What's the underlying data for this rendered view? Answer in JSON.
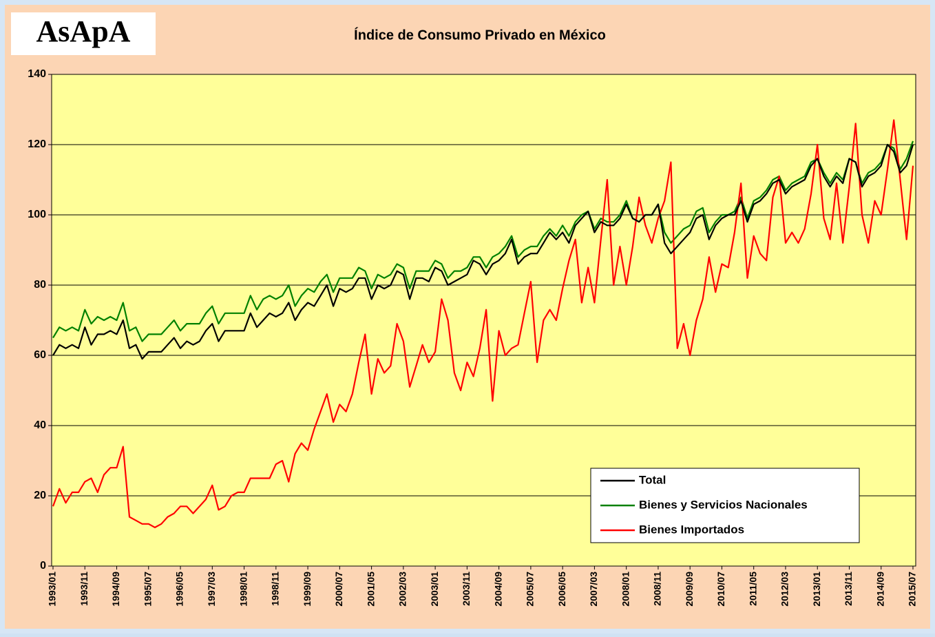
{
  "logo": "AsApA",
  "chart_data": {
    "type": "line",
    "title": "Índice de Consumo Privado en México",
    "categories": [
      "1993/01",
      null,
      null,
      null,
      null,
      "1993/11",
      null,
      null,
      null,
      null,
      "1994/09",
      null,
      null,
      null,
      null,
      "1995/07",
      null,
      null,
      null,
      null,
      "1996/05",
      null,
      null,
      null,
      null,
      "1997/03",
      null,
      null,
      null,
      null,
      "1998/01",
      null,
      null,
      null,
      null,
      "1998/11",
      null,
      null,
      null,
      null,
      "1999/09",
      null,
      null,
      null,
      null,
      "2000/07",
      null,
      null,
      null,
      null,
      "2001/05",
      null,
      null,
      null,
      null,
      "2002/03",
      null,
      null,
      null,
      null,
      "2003/01",
      null,
      null,
      null,
      null,
      "2003/11",
      null,
      null,
      null,
      null,
      "2004/09",
      null,
      null,
      null,
      null,
      "2005/07",
      null,
      null,
      null,
      null,
      "2006/05",
      null,
      null,
      null,
      null,
      "2007/03",
      null,
      null,
      null,
      null,
      "2008/01",
      null,
      null,
      null,
      null,
      "2008/11",
      null,
      null,
      null,
      null,
      "2009/09",
      null,
      null,
      null,
      null,
      "2010/07",
      null,
      null,
      null,
      null,
      "2011/05",
      null,
      null,
      null,
      null,
      "2012/03",
      null,
      null,
      null,
      null,
      "2013/01",
      null,
      null,
      null,
      null,
      "2013/11",
      null,
      null,
      null,
      null,
      "2014/09",
      null,
      null,
      null,
      null,
      "2015/07"
    ],
    "series": [
      {
        "name": "Total",
        "color": "#000000",
        "values": [
          60,
          63,
          62,
          63,
          62,
          68,
          63,
          66,
          66,
          67,
          66,
          70,
          62,
          63,
          59,
          61,
          61,
          61,
          63,
          65,
          62,
          64,
          63,
          64,
          67,
          69,
          64,
          67,
          67,
          67,
          67,
          72,
          68,
          70,
          72,
          71,
          72,
          75,
          70,
          73,
          75,
          74,
          77,
          80,
          74,
          79,
          78,
          79,
          82,
          82,
          76,
          80,
          79,
          80,
          84,
          83,
          76,
          82,
          82,
          81,
          85,
          84,
          80,
          81,
          82,
          83,
          87,
          86,
          83,
          86,
          87,
          89,
          93,
          86,
          88,
          89,
          89,
          92,
          95,
          93,
          95,
          92,
          97,
          99,
          101,
          95,
          98,
          97,
          97,
          99,
          103,
          99,
          98,
          100,
          100,
          103,
          92,
          89,
          91,
          93,
          95,
          99,
          100,
          93,
          97,
          99,
          100,
          100,
          104,
          98,
          103,
          104,
          106,
          109,
          110,
          106,
          108,
          109,
          110,
          114,
          116,
          111,
          108,
          111,
          109,
          116,
          115,
          108,
          111,
          112,
          114,
          120,
          118,
          112,
          114,
          120
        ]
      },
      {
        "name": "Bienes y Servicios Nacionales",
        "color": "#008000",
        "values": [
          65,
          68,
          67,
          68,
          67,
          73,
          69,
          71,
          70,
          71,
          70,
          75,
          67,
          68,
          64,
          66,
          66,
          66,
          68,
          70,
          67,
          69,
          69,
          69,
          72,
          74,
          69,
          72,
          72,
          72,
          72,
          77,
          73,
          76,
          77,
          76,
          77,
          80,
          74,
          77,
          79,
          78,
          81,
          83,
          78,
          82,
          82,
          82,
          85,
          84,
          79,
          83,
          82,
          83,
          86,
          85,
          79,
          84,
          84,
          84,
          87,
          86,
          82,
          84,
          84,
          85,
          88,
          88,
          85,
          88,
          89,
          91,
          94,
          88,
          90,
          91,
          91,
          94,
          96,
          94,
          97,
          94,
          98,
          100,
          101,
          96,
          99,
          98,
          98,
          100,
          104,
          99,
          98,
          100,
          100,
          103,
          95,
          92,
          94,
          96,
          97,
          101,
          102,
          95,
          98,
          100,
          100,
          101,
          105,
          99,
          104,
          105,
          107,
          110,
          111,
          107,
          109,
          110,
          111,
          115,
          116,
          112,
          109,
          112,
          110,
          116,
          115,
          109,
          112,
          113,
          115,
          120,
          119,
          113,
          116,
          121
        ]
      },
      {
        "name": "Bienes Importados",
        "color": "#ff0000",
        "values": [
          17,
          22,
          18,
          21,
          21,
          24,
          25,
          21,
          26,
          28,
          28,
          34,
          14,
          13,
          12,
          12,
          11,
          12,
          14,
          15,
          17,
          17,
          15,
          17,
          19,
          23,
          16,
          17,
          20,
          21,
          21,
          25,
          25,
          25,
          25,
          29,
          30,
          24,
          32,
          35,
          33,
          39,
          44,
          49,
          41,
          46,
          44,
          49,
          58,
          66,
          49,
          59,
          55,
          57,
          69,
          64,
          51,
          57,
          63,
          58,
          61,
          76,
          70,
          55,
          50,
          58,
          54,
          62,
          73,
          47,
          67,
          60,
          62,
          63,
          72,
          81,
          58,
          70,
          73,
          70,
          79,
          87,
          93,
          75,
          85,
          75,
          93,
          110,
          80,
          91,
          80,
          91,
          105,
          97,
          92,
          99,
          104,
          115,
          62,
          69,
          60,
          70,
          76,
          88,
          78,
          86,
          85,
          95,
          109,
          82,
          94,
          89,
          87,
          105,
          111,
          92,
          95,
          92,
          96,
          106,
          120,
          99,
          93,
          109,
          92,
          108,
          126,
          100,
          92,
          104,
          100,
          113,
          127,
          110,
          93,
          114
        ]
      }
    ],
    "ylim": [
      0,
      140
    ],
    "yticks": [
      0,
      20,
      40,
      60,
      80,
      100,
      120,
      140
    ],
    "grid": true,
    "legend": "lower right"
  }
}
